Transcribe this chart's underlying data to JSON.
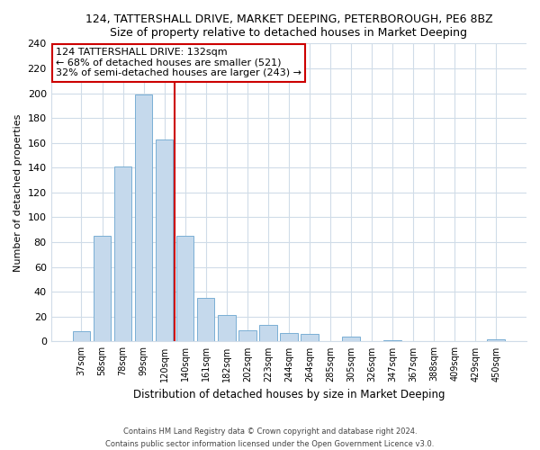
{
  "title": "124, TATTERSHALL DRIVE, MARKET DEEPING, PETERBOROUGH, PE6 8BZ",
  "subtitle": "Size of property relative to detached houses in Market Deeping",
  "xlabel": "Distribution of detached houses by size in Market Deeping",
  "ylabel": "Number of detached properties",
  "bar_labels": [
    "37sqm",
    "58sqm",
    "78sqm",
    "99sqm",
    "120sqm",
    "140sqm",
    "161sqm",
    "182sqm",
    "202sqm",
    "223sqm",
    "244sqm",
    "264sqm",
    "285sqm",
    "305sqm",
    "326sqm",
    "347sqm",
    "367sqm",
    "388sqm",
    "409sqm",
    "429sqm",
    "450sqm"
  ],
  "bar_values": [
    8,
    85,
    141,
    199,
    163,
    85,
    35,
    21,
    9,
    13,
    7,
    6,
    0,
    4,
    0,
    1,
    0,
    0,
    0,
    0,
    2
  ],
  "bar_color": "#c5d9ec",
  "bar_edge_color": "#7aafd4",
  "vline_color": "#cc0000",
  "annotation_title": "124 TATTERSHALL DRIVE: 132sqm",
  "annotation_line1": "← 68% of detached houses are smaller (521)",
  "annotation_line2": "32% of semi-detached houses are larger (243) →",
  "annotation_box_color": "#ffffff",
  "annotation_box_edge": "#cc0000",
  "ylim": [
    0,
    240
  ],
  "yticks": [
    0,
    20,
    40,
    60,
    80,
    100,
    120,
    140,
    160,
    180,
    200,
    220,
    240
  ],
  "footer_line1": "Contains HM Land Registry data © Crown copyright and database right 2024.",
  "footer_line2": "Contains public sector information licensed under the Open Government Licence v3.0.",
  "bg_color": "#ffffff",
  "plot_bg_color": "#ffffff",
  "grid_color": "#d0dce8"
}
